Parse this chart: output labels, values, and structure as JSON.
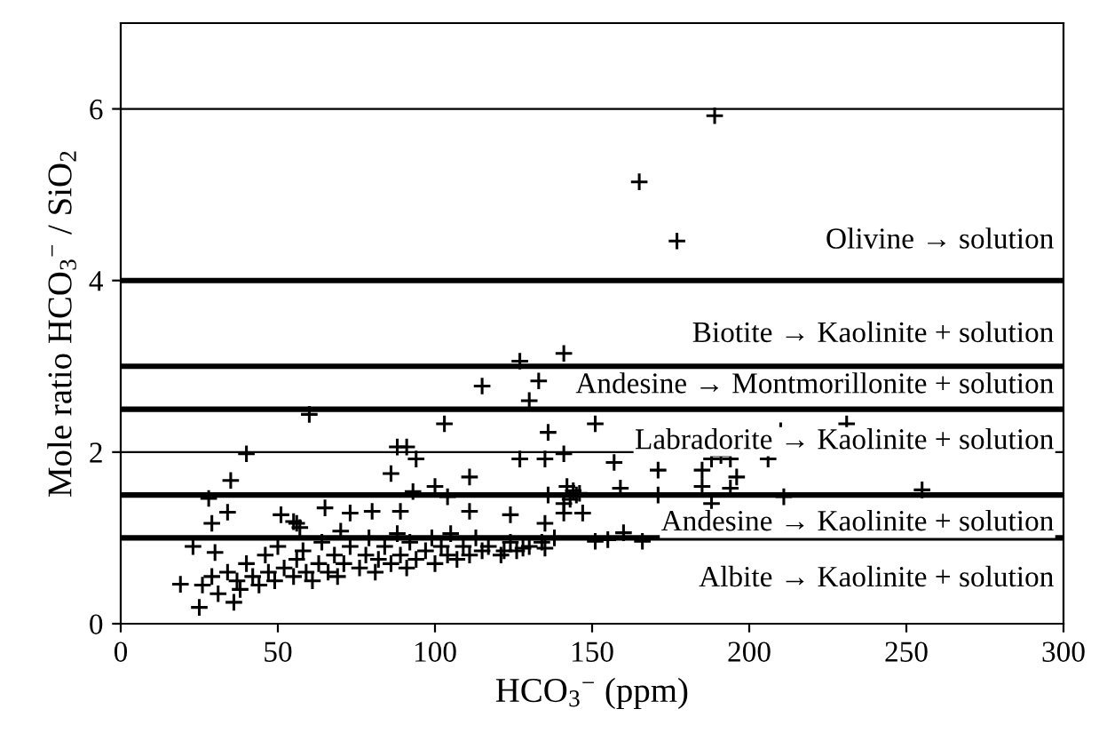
{
  "chart_data": {
    "type": "scatter",
    "xlabel": "HCO$_{3}$$^{−}$ (ppm)",
    "ylabel": "Mole ratio HCO$_{3}$$^{−}$ / SiO$_{2}$",
    "xlim": [
      0,
      300
    ],
    "xticks": [
      0,
      50,
      100,
      150,
      200,
      250,
      300
    ],
    "ylim": [
      0,
      7
    ],
    "yticks": [
      0,
      2,
      4,
      6
    ],
    "grid": "y",
    "marker": "cross",
    "legend": false,
    "series": [
      {
        "color": "#000000",
        "x": [
          189,
          165,
          177,
          60,
          40,
          35,
          28,
          29,
          34,
          23,
          51,
          56,
          19,
          25,
          36,
          127,
          141,
          115,
          133,
          130,
          103,
          151,
          136,
          88,
          91,
          94,
          86,
          111,
          127,
          135,
          141,
          157,
          159,
          136,
          100,
          104,
          93,
          146,
          141,
          147,
          124,
          111,
          73,
          65,
          80,
          89,
          135,
          135,
          128,
          151,
          155,
          160,
          122,
          55,
          57,
          70,
          210,
          231,
          188,
          191,
          194,
          185,
          196,
          206,
          171,
          171,
          185,
          194,
          188,
          211,
          255,
          166,
          26,
          29,
          31,
          34,
          37,
          38,
          40,
          42,
          44,
          46,
          47,
          49,
          50,
          52,
          55,
          56,
          58,
          59,
          61,
          63,
          64,
          66,
          68,
          69,
          71,
          73,
          76,
          78,
          79,
          81,
          82,
          84,
          86,
          88,
          89,
          91,
          92,
          94,
          97,
          99,
          100,
          102,
          104,
          105,
          107,
          109,
          111,
          113,
          115,
          117,
          121,
          124,
          126,
          130,
          134,
          138,
          143,
          144,
          142,
          145,
          141,
          30
        ],
        "values": [
          5.92,
          5.15,
          4.46,
          2.44,
          1.98,
          1.67,
          1.46,
          1.17,
          1.3,
          0.9,
          1.27,
          1.17,
          0.46,
          0.19,
          0.25,
          3.06,
          3.15,
          2.77,
          2.83,
          2.6,
          2.33,
          2.33,
          2.23,
          2.06,
          2.06,
          1.92,
          1.75,
          1.71,
          1.92,
          1.92,
          1.98,
          1.88,
          1.58,
          1.5,
          1.6,
          1.48,
          1.54,
          1.52,
          1.29,
          1.29,
          1.27,
          1.31,
          1.29,
          1.35,
          1.31,
          1.31,
          1.17,
          0.88,
          0.88,
          0.96,
          0.98,
          1.06,
          0.85,
          1.19,
          1.12,
          1.08,
          2.25,
          2.33,
          1.92,
          1.96,
          1.92,
          1.79,
          1.71,
          1.92,
          1.79,
          1.5,
          1.6,
          1.58,
          1.4,
          1.48,
          1.56,
          0.96,
          0.45,
          0.55,
          0.35,
          0.6,
          0.5,
          0.4,
          0.7,
          0.55,
          0.45,
          0.8,
          0.6,
          0.5,
          0.9,
          0.65,
          0.55,
          0.75,
          0.85,
          0.6,
          0.5,
          0.7,
          0.95,
          0.6,
          0.8,
          0.55,
          0.7,
          0.9,
          0.65,
          0.8,
          1.0,
          0.6,
          0.75,
          0.9,
          0.7,
          1.05,
          0.8,
          0.65,
          0.95,
          0.75,
          0.85,
          1.0,
          0.7,
          0.9,
          0.8,
          1.05,
          0.75,
          0.9,
          0.8,
          1.0,
          0.85,
          0.9,
          0.8,
          0.95,
          0.85,
          0.9,
          0.95,
          1.0,
          1.45,
          1.55,
          1.6,
          1.5,
          1.4,
          0.83
        ]
      }
    ],
    "ref_lines": [
      {
        "axis": "y",
        "value": 4,
        "color": "#000000",
        "line_style": "solid"
      },
      {
        "axis": "y",
        "value": 3,
        "color": "#000000",
        "line_style": "solid"
      },
      {
        "axis": "y",
        "value": 2.5,
        "color": "#000000",
        "line_style": "solid"
      },
      {
        "axis": "y",
        "value": 1.5,
        "color": "#000000",
        "line_style": "solid"
      },
      {
        "axis": "y",
        "value": 1,
        "color": "#000000",
        "line_style": "solid"
      }
    ],
    "annotations": [
      "Olivine → solution",
      "Biotite → Kaolinite + solution",
      "Andesine → Montmorillonite + solution",
      "Labradorite → Kaolinite + solution",
      "Andesine → Kaolinite + solution",
      "Albite → Kaolinite + solution"
    ]
  }
}
